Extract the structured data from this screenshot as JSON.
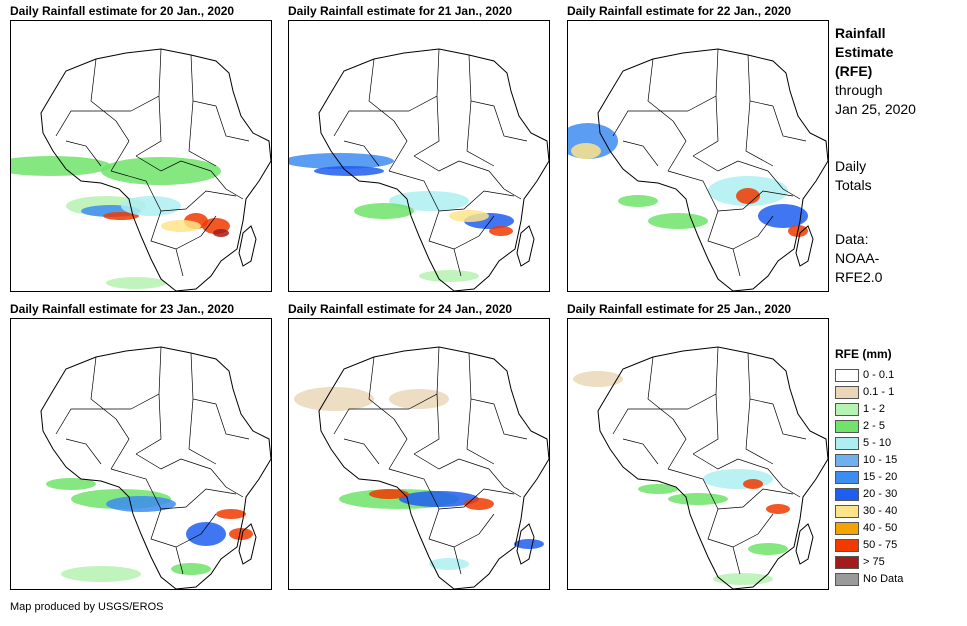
{
  "panels": [
    {
      "title": "Daily Rainfall estimate for 20 Jan., 2020"
    },
    {
      "title": "Daily Rainfall estimate for 21 Jan., 2020"
    },
    {
      "title": "Daily Rainfall estimate for 22 Jan., 2020"
    },
    {
      "title": "Daily Rainfall estimate for 23 Jan., 2020"
    },
    {
      "title": "Daily Rainfall estimate for 24 Jan., 2020"
    },
    {
      "title": "Daily Rainfall estimate for 25 Jan., 2020"
    }
  ],
  "sidebar": {
    "title_line1": "Rainfall",
    "title_line2": "Estimate",
    "title_line3": "(RFE)",
    "through_line1": "through",
    "through_line2": "Jan 25, 2020",
    "totals_line1": "Daily",
    "totals_line2": "Totals",
    "data_line1": "Data:",
    "data_line2": "NOAA-",
    "data_line3": "RFE2.0"
  },
  "legend": {
    "title": "RFE (mm)",
    "items": [
      {
        "label": "0 - 0.1",
        "color": "#ffffff"
      },
      {
        "label": "0.1 - 1",
        "color": "#e9d7b8"
      },
      {
        "label": "1 - 2",
        "color": "#b6f2b0"
      },
      {
        "label": "2 - 5",
        "color": "#6fe36a"
      },
      {
        "label": "5 - 10",
        "color": "#aeeef0"
      },
      {
        "label": "10 - 15",
        "color": "#6fb1f0"
      },
      {
        "label": "15 - 20",
        "color": "#3d8cf0"
      },
      {
        "label": "20 - 30",
        "color": "#1e5ef0"
      },
      {
        "label": "30 - 40",
        "color": "#fde48a"
      },
      {
        "label": "40 - 50",
        "color": "#f5a300"
      },
      {
        "label": "50 - 75",
        "color": "#f03a00"
      },
      {
        "label": "> 75",
        "color": "#a41b1b"
      },
      {
        "label": "No Data",
        "color": "#9a9a9a"
      }
    ]
  },
  "credit": "Map produced by USGS/EROS"
}
